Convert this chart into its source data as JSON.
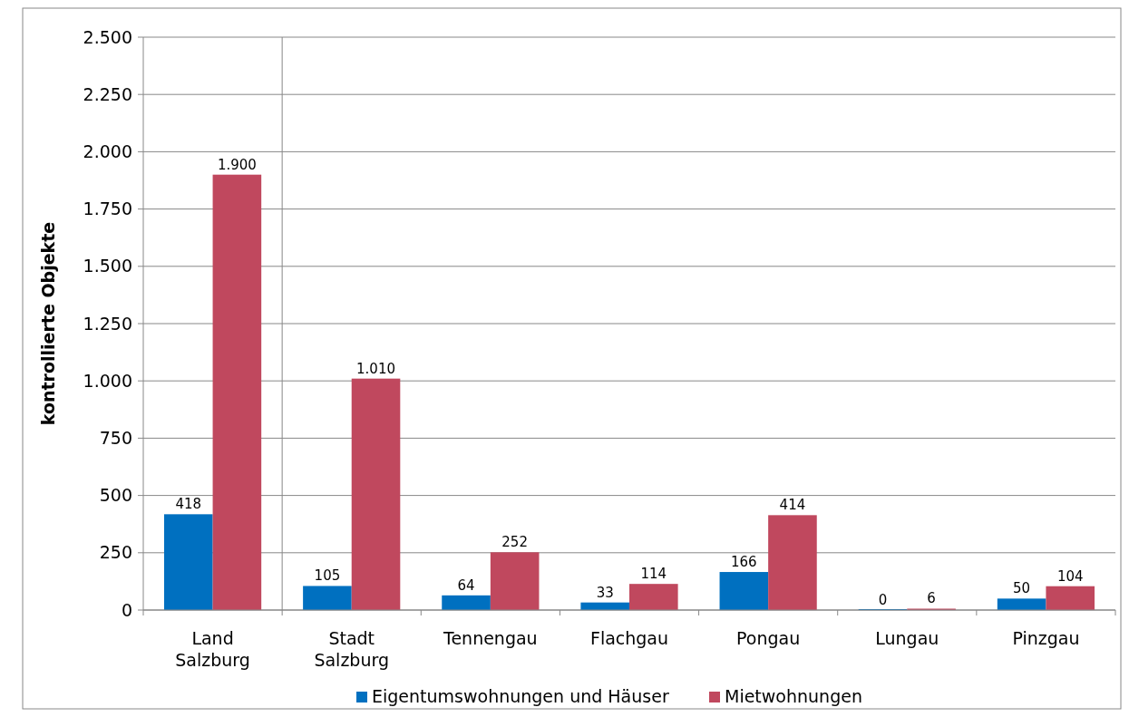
{
  "chart_data": {
    "type": "bar",
    "ylabel": "kontrollierte Objekte",
    "categories": [
      "Land Salzburg",
      "Stadt Salzburg",
      "Tennengau",
      "Flachgau",
      "Pongau",
      "Lungau",
      "Pinzgau"
    ],
    "series": [
      {
        "name": "Eigentumswohnungen und Häuser",
        "color": "#0070c0",
        "values": [
          418,
          105,
          64,
          33,
          166,
          0,
          50
        ],
        "value_labels": [
          "418",
          "105",
          "64",
          "33",
          "166",
          "0",
          "50"
        ]
      },
      {
        "name": "Mietwohnungen",
        "color": "#c0485e",
        "values": [
          1900,
          1010,
          252,
          114,
          414,
          6,
          104
        ],
        "value_labels": [
          "1.900",
          "1.010",
          "252",
          "114",
          "414",
          "6",
          "104"
        ]
      }
    ],
    "ylim": [
      0,
      2500
    ],
    "yticks": [
      0,
      {
        "value": 250,
        "label": "250"
      },
      {
        "value": 500,
        "label": "500"
      },
      {
        "value": 750,
        "label": "750"
      },
      {
        "value": 1000,
        "label": "1.000"
      },
      {
        "value": 1250,
        "label": "1.250"
      },
      {
        "value": 1500,
        "label": "1.500"
      },
      {
        "value": 1750,
        "label": "1.750"
      },
      {
        "value": 2000,
        "label": "2.000"
      },
      {
        "value": 2250,
        "label": "2.250"
      },
      {
        "value": 2500,
        "label": "2.500"
      }
    ],
    "grid": "y",
    "legend": "bottom"
  }
}
